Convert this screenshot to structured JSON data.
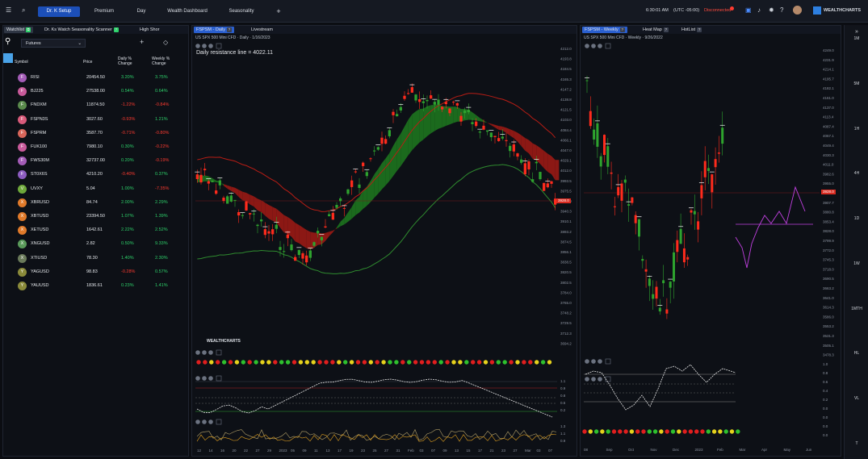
{
  "topbar": {
    "tabs": [
      {
        "label": "Dr. K Setup",
        "active": true
      },
      {
        "label": "Premium",
        "active": false
      },
      {
        "label": "Day",
        "active": false
      },
      {
        "label": "Wealth Dashboard",
        "active": false
      },
      {
        "label": "Seasonality",
        "active": false
      }
    ],
    "add_tab": "+",
    "clock": "6:30:01 AM",
    "utc": "(UTC -05:00)",
    "connection": "Disconnected",
    "brand": "WEALTHCHARTS"
  },
  "watchlist": {
    "tabs": [
      {
        "label": "Watchlist",
        "badge": "⧉"
      },
      {
        "label": "Dr. Ks Watch Seasonality Scanner",
        "badge": "?"
      },
      {
        "label": "High Shor",
        "badge": ""
      }
    ],
    "list_name": "Futures",
    "add": "+",
    "headers": {
      "symbol": "Symbol",
      "price": "Price",
      "daily": "Daily % Change",
      "weekly": "Weekly % Change"
    },
    "rows": [
      {
        "icon": "F",
        "color": "#a35cb6",
        "symbol": "RISI",
        "price": "20454.50",
        "daily": "3.20%",
        "weekly": "3.75%",
        "dir_d": "up",
        "dir_w": "up"
      },
      {
        "icon": "F",
        "color": "#c85a9a",
        "symbol": "BJ225",
        "price": "27538.00",
        "daily": "0.54%",
        "weekly": "0.64%",
        "dir_d": "up",
        "dir_w": "up"
      },
      {
        "icon": "F",
        "color": "#5a8a4c",
        "symbol": "FNDXM",
        "price": "11874.50",
        "daily": "-1.22%",
        "weekly": "-0.84%",
        "dir_d": "dn",
        "dir_w": "dn"
      },
      {
        "icon": "F",
        "color": "#d85a7a",
        "symbol": "FSPN3S",
        "price": "3027.60",
        "daily": "-0.93%",
        "weekly": "1.21%",
        "dir_d": "dn",
        "dir_w": "up"
      },
      {
        "icon": "F",
        "color": "#d8665a",
        "symbol": "FSPRM",
        "price": "3587.70",
        "daily": "-0.71%",
        "weekly": "-0.80%",
        "dir_d": "dn",
        "dir_w": "dn"
      },
      {
        "icon": "F",
        "color": "#c85a9a",
        "symbol": "FUK100",
        "price": "7980.10",
        "daily": "0.30%",
        "weekly": "-0.22%",
        "dir_d": "up",
        "dir_w": "dn"
      },
      {
        "icon": "F",
        "color": "#a35cb6",
        "symbol": "FWS30M",
        "price": "32737.00",
        "daily": "0.20%",
        "weekly": "-0.19%",
        "dir_d": "up",
        "dir_w": "dn"
      },
      {
        "icon": "F",
        "color": "#8c5cc0",
        "symbol": "ST0X6S",
        "price": "4210.20",
        "daily": "-0.40%",
        "weekly": "0.37%",
        "dir_d": "dn",
        "dir_w": "up"
      },
      {
        "icon": "V",
        "color": "#6ea83a",
        "symbol": "UVXY",
        "price": "5.04",
        "daily": "1.00%",
        "weekly": "-7.35%",
        "dir_d": "up",
        "dir_w": "dn"
      },
      {
        "icon": "X",
        "color": "#e07a2a",
        "symbol": "XBRUSD",
        "price": "84.74",
        "daily": "2.00%",
        "weekly": "2.29%",
        "dir_d": "up",
        "dir_w": "up"
      },
      {
        "icon": "X",
        "color": "#e07a2a",
        "symbol": "XBTUSD",
        "price": "23394.50",
        "daily": "1.07%",
        "weekly": "1.39%",
        "dir_d": "up",
        "dir_w": "up"
      },
      {
        "icon": "X",
        "color": "#e07a2a",
        "symbol": "XETUSD",
        "price": "1642.61",
        "daily": "2.22%",
        "weekly": "2.52%",
        "dir_d": "up",
        "dir_w": "up"
      },
      {
        "icon": "X",
        "color": "#5a9a5a",
        "symbol": "XNGUSD",
        "price": "2.82",
        "daily": "0.50%",
        "weekly": "9.33%",
        "dir_d": "up",
        "dir_w": "up"
      },
      {
        "icon": "X",
        "color": "#6a7a5a",
        "symbol": "XTIUSD",
        "price": "78.30",
        "daily": "1.40%",
        "weekly": "2.30%",
        "dir_d": "up",
        "dir_w": "up"
      },
      {
        "icon": "Y",
        "color": "#8a8a3a",
        "symbol": "YAGUSD",
        "price": "98.83",
        "daily": "-0.28%",
        "weekly": "0.57%",
        "dir_d": "dn",
        "dir_w": "up"
      },
      {
        "icon": "Y",
        "color": "#8a8a3a",
        "symbol": "YAUUSD",
        "price": "1836.61",
        "daily": "0.23%",
        "weekly": "1.41%",
        "dir_d": "up",
        "dir_w": "up"
      }
    ]
  },
  "chart_daily": {
    "tabs": [
      {
        "label": "FSPSM - Daily",
        "badge": "?"
      },
      {
        "label": "Livestream",
        "badge": ""
      }
    ],
    "subtitle": "US SPX 500 Mini CFD · Daily · 1/16/2023",
    "annotation": "Daily resistance line = 4022.11",
    "price_tag": "3928.0",
    "brand": "WEALTHCHARTS",
    "price_axis": [
      "4212.0",
      "4193.8",
      "4184.5",
      "4165.3",
      "4147.2",
      "4138.8",
      "4121.5",
      "4103.0",
      "4084.4",
      "4066.1",
      "4047.0",
      "4029.1",
      "4012.0",
      "3993.5",
      "3975.5",
      "3957.0",
      "3940.3",
      "3910.1",
      "3893.2",
      "3874.5",
      "3856.1",
      "3838.5",
      "3820.5",
      "3802.5",
      "3784.0",
      "3765.0",
      "3748.2",
      "3729.5",
      "3712.3",
      "3694.2"
    ],
    "date_axis": [
      "12",
      "14",
      "16",
      "20",
      "22",
      "27",
      "29",
      "2023",
      "05",
      "09",
      "11",
      "13",
      "17",
      "19",
      "23",
      "25",
      "27",
      "31",
      "Feb",
      "03",
      "07",
      "09",
      "13",
      "15",
      "17",
      "21",
      "23",
      "27",
      "Mar",
      "03",
      "07"
    ],
    "osc_axis_1": [
      "1.1",
      "0.9",
      "0.8",
      "0.5",
      "0.2"
    ],
    "osc_axis_2": [
      "1.3",
      "1.1",
      "0.9"
    ]
  },
  "chart_weekly": {
    "tabs": [
      {
        "label": "FSPSM - Weekly",
        "badge": "?"
      },
      {
        "label": "Heat Map",
        "badge": "?"
      },
      {
        "label": "HotList",
        "badge": "?"
      }
    ],
    "subtitle": "US SPX 500 Mini CFD · Weekly · 9/26/2022",
    "price_tag": "3928.0",
    "price_axis": [
      "4249.0",
      "4231.9",
      "4214.1",
      "4195.7",
      "4182.1",
      "4161.0",
      "4137.0",
      "4113.4",
      "4087.4",
      "4067.1",
      "4049.4",
      "4030.3",
      "4011.0",
      "3982.6",
      "3955.0",
      "3928.0",
      "3907.7",
      "3880.8",
      "3853.4",
      "3828.0",
      "3799.9",
      "3772.0",
      "3745.3",
      "3718.0",
      "3690.5",
      "3663.2",
      "3641.0",
      "3614.3",
      "3586.0",
      "3553.2",
      "3531.3",
      "3505.1",
      "3478.3"
    ],
    "date_axis": [
      "08",
      "Sep",
      "Oct",
      "Nov",
      "Dec",
      "2023",
      "Feb",
      "Mar",
      "Apr",
      "May",
      "Jun"
    ],
    "osc_axis": [
      "1.0",
      "0.8",
      "0.6",
      "0.4",
      "0.2",
      "0.0"
    ],
    "osc_axis_2": [
      "0.0",
      "0.0",
      "0.0"
    ]
  },
  "timeframes": [
    "1M",
    "5M",
    "1H",
    "4H",
    "1D",
    "1W",
    "1MTH",
    "HL",
    "VL",
    "T"
  ],
  "colors": {
    "up": "#2ed26b",
    "down": "#ff3b30",
    "accent": "#1c4fb8"
  }
}
